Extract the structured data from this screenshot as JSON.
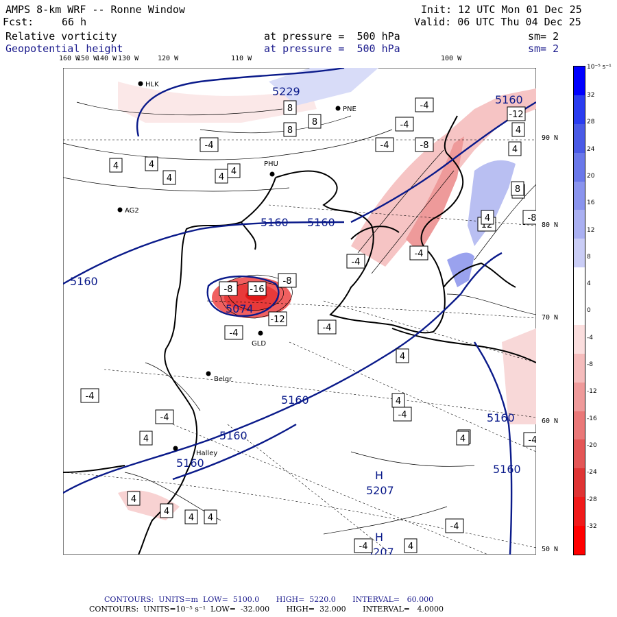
{
  "header": {
    "title": "AMPS 8-km WRF -- Ronne Window",
    "init": "Init: 12 UTC Mon 01 Dec 25",
    "fcst_label": "Fcst:",
    "fcst_value": "66 h",
    "valid": "Valid: 06 UTC Thu 04 Dec 25",
    "field1": "Relative vorticity",
    "field1_level": "at pressure =  500 hPa",
    "field1_sm": "sm= 2",
    "field2": "Geopotential height",
    "field2_level": "at pressure =  500 hPa",
    "field2_sm": "sm= 2"
  },
  "lon_labels": [
    "160 W",
    "150 W",
    "140 W",
    "130 W",
    "120 W",
    "110 W",
    "100 W"
  ],
  "lat_labels": [
    "90 N",
    "80 N",
    "70 N",
    "60 N",
    "50 N"
  ],
  "stations": [
    {
      "name": "HLK"
    },
    {
      "name": "PNE"
    },
    {
      "name": "PHU"
    },
    {
      "name": "AG2"
    },
    {
      "name": "GLD"
    },
    {
      "name": "Belgr"
    },
    {
      "name": "Halley"
    }
  ],
  "height_labels": [
    "5160",
    "5160",
    "5160",
    "5160",
    "5160",
    "5160",
    "5160",
    "5160",
    "5160",
    "5207",
    "5207",
    "5229",
    "5074"
  ],
  "high_labels": [
    "H",
    "H"
  ],
  "vort_boxes": [
    "-4",
    "8",
    "8",
    "8",
    "4",
    "4",
    "4",
    "4",
    "4",
    "-4",
    "-4",
    "-4",
    "-12",
    "-8",
    "4",
    "8",
    "12",
    "-8",
    "-4",
    "-4",
    "-8",
    "-16",
    "-8",
    "-12",
    "-4",
    "4",
    "4",
    "-4",
    "-4",
    "-4",
    "4",
    "4",
    "4",
    "-4",
    "4",
    "4",
    "-4",
    "4",
    "4",
    "4",
    "4",
    "-4",
    "4",
    "-4",
    "4"
  ],
  "colorbar": {
    "units": "10⁻⁵ s⁻¹",
    "ticks": [
      "32",
      "28",
      "24",
      "20",
      "16",
      "12",
      "8",
      "4",
      "0",
      "-4",
      "-8",
      "-12",
      "-16",
      "-20",
      "-24",
      "-28",
      "-32"
    ],
    "colors": [
      "#0000ff",
      "#2a3cf0",
      "#4a5ae6",
      "#6a78ea",
      "#8a94ee",
      "#aab0f2",
      "#cacdf6",
      "#ffffff",
      "#ffffff",
      "#fbdede",
      "#f5bcbc",
      "#ef9a9a",
      "#ea7878",
      "#e45656",
      "#df3434",
      "#f01a1a",
      "#ff0000"
    ]
  },
  "footer": {
    "line1": "CONTOURS:  UNITS=m  LOW=  5100.0       HIGH=  5220.0       INTERVAL=   60.000",
    "line2": "CONTOURS:  UNITS=10⁻⁵ s⁻¹  LOW=  -32.000       HIGH=  32.000       INTERVAL=   4.0000"
  }
}
